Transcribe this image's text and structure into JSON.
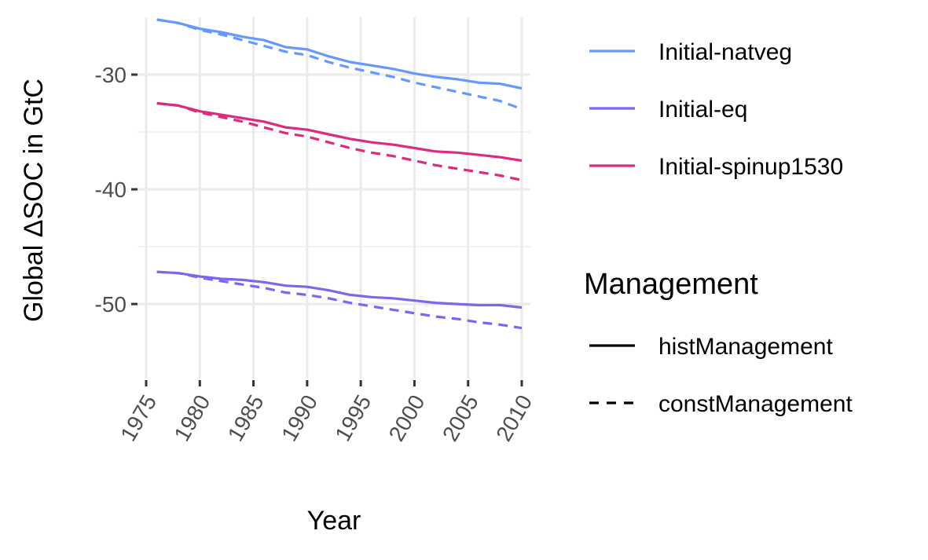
{
  "chart_data": {
    "type": "line",
    "xlabel": "Year",
    "ylabel": "Global ΔSOC in GtC",
    "xlim": [
      1975,
      2010
    ],
    "ylim": [
      -56.5,
      -25
    ],
    "x_ticks": [
      1975,
      1980,
      1985,
      1990,
      1995,
      2000,
      2005,
      2010
    ],
    "y_ticks": [
      -30,
      -40,
      -50
    ],
    "x_tick_labels": [
      "1975",
      "1980",
      "1985",
      "1990",
      "1995",
      "2000",
      "2005",
      "2010"
    ],
    "y_tick_labels": [
      "-30",
      "-40",
      "-50"
    ],
    "grid": true,
    "x_tick_rotation_deg": -60,
    "legend": {
      "placement": "right",
      "color_entries": [
        {
          "label": "Initial-natveg",
          "color": "#6699ff"
        },
        {
          "label": "Initial-eq",
          "color": "#7b68ee"
        },
        {
          "label": "Initial-spinup1530",
          "color": "#de2a7f"
        }
      ],
      "linetype_title": "Management",
      "linetype_entries": [
        {
          "label": "histManagement",
          "linetype": "solid"
        },
        {
          "label": "constManagement",
          "linetype": "dashed"
        }
      ]
    },
    "x": [
      1976,
      1978,
      1980,
      1982,
      1984,
      1986,
      1988,
      1990,
      1992,
      1994,
      1996,
      1998,
      2000,
      2002,
      2004,
      2006,
      2008,
      2010
    ],
    "series": [
      {
        "name": "Initial-natveg",
        "management": "histManagement",
        "color": "#6699ff",
        "dash": "solid",
        "values": [
          -25.2,
          -25.5,
          -26.0,
          -26.3,
          -26.7,
          -27.0,
          -27.6,
          -27.8,
          -28.4,
          -28.9,
          -29.2,
          -29.5,
          -29.9,
          -30.2,
          -30.4,
          -30.7,
          -30.8,
          -31.2
        ]
      },
      {
        "name": "Initial-natveg",
        "management": "constManagement",
        "color": "#6699ff",
        "dash": "dashed",
        "values": [
          -25.2,
          -25.5,
          -26.1,
          -26.5,
          -27.0,
          -27.5,
          -28.0,
          -28.3,
          -28.9,
          -29.4,
          -29.8,
          -30.2,
          -30.7,
          -31.1,
          -31.5,
          -31.9,
          -32.3,
          -33.0
        ]
      },
      {
        "name": "Initial-spinup1530",
        "management": "histManagement",
        "color": "#de2a7f",
        "dash": "solid",
        "values": [
          -32.5,
          -32.7,
          -33.2,
          -33.5,
          -33.8,
          -34.1,
          -34.6,
          -34.8,
          -35.2,
          -35.6,
          -35.9,
          -36.1,
          -36.4,
          -36.7,
          -36.8,
          -37.0,
          -37.2,
          -37.5
        ]
      },
      {
        "name": "Initial-spinup1530",
        "management": "constManagement",
        "color": "#de2a7f",
        "dash": "dashed",
        "values": [
          -32.5,
          -32.7,
          -33.3,
          -33.7,
          -34.1,
          -34.6,
          -35.1,
          -35.4,
          -35.9,
          -36.4,
          -36.8,
          -37.1,
          -37.5,
          -37.9,
          -38.2,
          -38.5,
          -38.8,
          -39.2
        ]
      },
      {
        "name": "Initial-eq",
        "management": "histManagement",
        "color": "#7b68ee",
        "dash": "solid",
        "values": [
          -47.2,
          -47.3,
          -47.6,
          -47.8,
          -47.9,
          -48.1,
          -48.4,
          -48.5,
          -48.8,
          -49.2,
          -49.4,
          -49.5,
          -49.7,
          -49.9,
          -50.0,
          -50.1,
          -50.1,
          -50.3
        ]
      },
      {
        "name": "Initial-eq",
        "management": "constManagement",
        "color": "#7b68ee",
        "dash": "dashed",
        "values": [
          -47.2,
          -47.3,
          -47.7,
          -48.0,
          -48.3,
          -48.6,
          -49.0,
          -49.2,
          -49.5,
          -49.9,
          -50.2,
          -50.5,
          -50.8,
          -51.1,
          -51.3,
          -51.6,
          -51.8,
          -52.1
        ]
      }
    ]
  }
}
